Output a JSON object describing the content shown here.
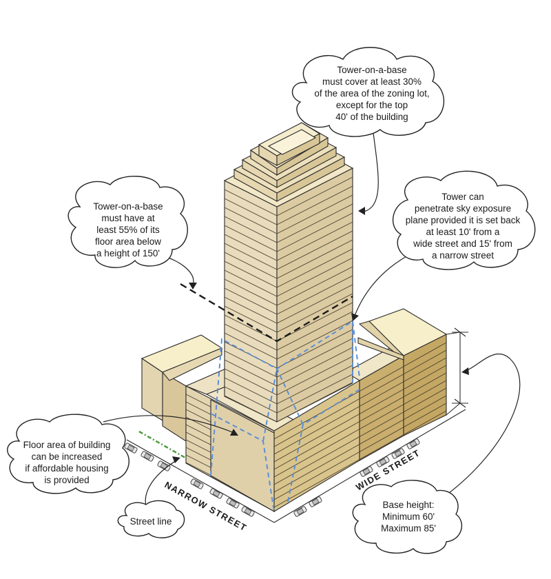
{
  "callouts": {
    "tower_coverage": [
      "Tower-on-a-base",
      "must cover at least 30%",
      "of the area of the zoning lot,",
      "except for the top",
      "40' of the building"
    ],
    "floor_area_below": [
      "Tower-on-a-base",
      "must have at",
      "least 55% of its",
      "floor area below",
      "a height of 150'"
    ],
    "sky_exposure": [
      "Tower can",
      "penetrate sky exposure",
      "plane provided it is set back",
      "at least 10' from a",
      "wide street and 15' from",
      "a narrow street"
    ],
    "affordable_housing": [
      "Floor area of building",
      "can be increased",
      "if affordable housing",
      "is provided"
    ],
    "street_line": [
      "Street line"
    ],
    "base_height": [
      "Base height:",
      "Minimum 60'",
      "Maximum 85'"
    ]
  },
  "streets": {
    "narrow": "NARROW STREET",
    "wide": "WIDE STREET"
  },
  "colors": {
    "tower_left": "#e9dcbc",
    "tower_right": "#dccba2",
    "base_front": "#e4d5b1",
    "base_right": "#c9ae6e",
    "roof": "#f7efc9",
    "dash_blue": "#5b8fd6",
    "street_line_green": "#4a9a3a"
  },
  "icons": [
    "car-icon"
  ]
}
